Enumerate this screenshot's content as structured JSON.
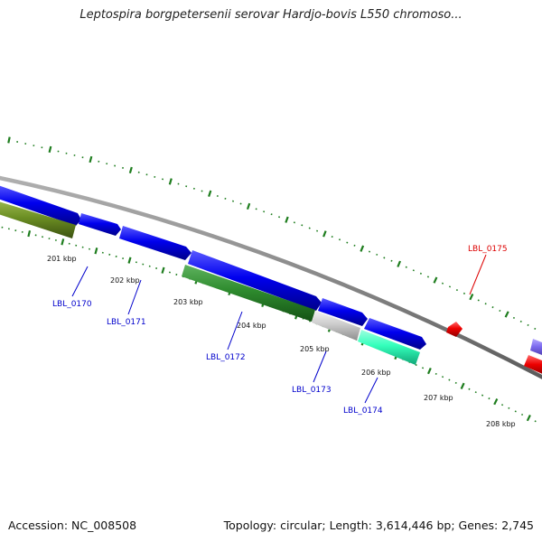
{
  "title": "Leptospira borgpetersenii serovar Hardjo-bovis L550 chromoso...",
  "accession_text": "Accession: NC_008508",
  "summary_text": "Topology: circular; Length: 3,614,446 bp; Genes: 2,745",
  "colors": {
    "backbone": "#888888",
    "tick": "#1e7d1e",
    "gene_blue": "#0000ee",
    "gene_green": "#2e8b2e",
    "gene_olive": "#6b8e23",
    "gene_gray": "#cccccc",
    "gene_cyan": "#33ffbb",
    "gene_red": "#ee0000",
    "gene_purple": "#7b68ee",
    "label_blue": "#0000cc",
    "label_red": "#dd0000"
  },
  "scale_labels": [
    "201 kbp",
    "202 kbp",
    "203 kbp",
    "204 kbp",
    "205 kbp",
    "206 kbp",
    "207 kbp",
    "208 kbp"
  ],
  "gene_labels": [
    {
      "text": "LBL_0170",
      "color": "blue"
    },
    {
      "text": "LBL_0171",
      "color": "blue"
    },
    {
      "text": "LBL_0172",
      "color": "blue"
    },
    {
      "text": "LBL_0173",
      "color": "blue"
    },
    {
      "text": "LBL_0174",
      "color": "blue"
    },
    {
      "text": "LBL_0175",
      "color": "red"
    }
  ]
}
